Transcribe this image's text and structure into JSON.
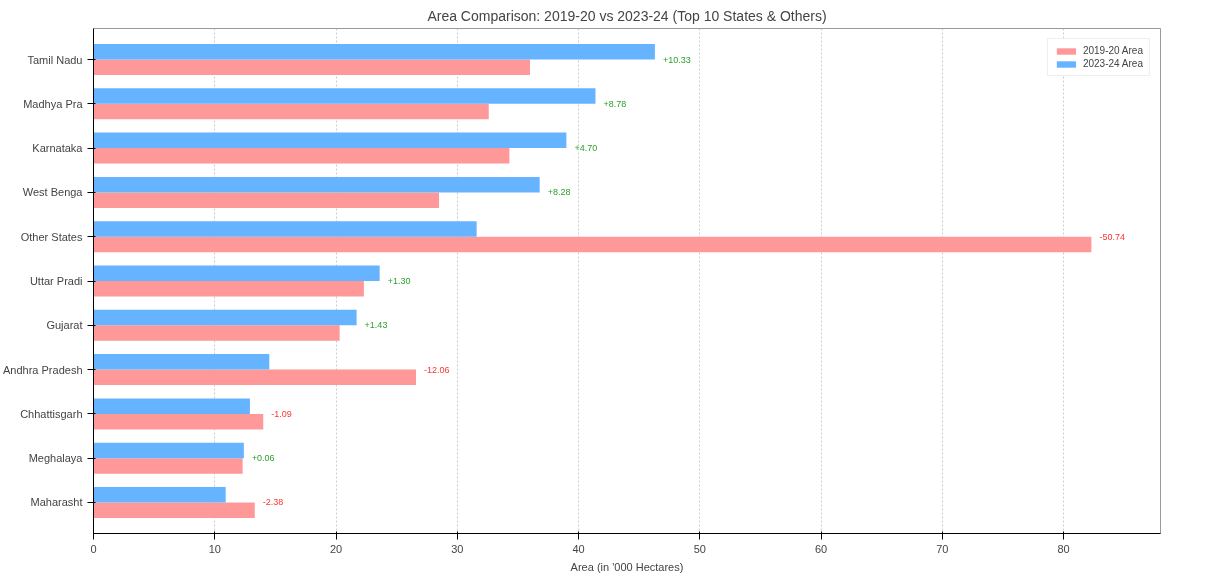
{
  "chart_data": {
    "type": "bar",
    "orientation": "horizontal",
    "title": "Area Comparison: 2019-20 vs 2023-24 (Top 10 States & Others)",
    "xlabel": "Area (in '000 Hectares)",
    "categories": [
      "Tamil Nadu",
      "Madhya Pra",
      "Karnataka",
      "West Benga",
      "Other States",
      "Uttar Pradi",
      "Gujarat",
      "Andhra Pradesh",
      "Chhattisgarh",
      "Meghalaya",
      "Maharasht"
    ],
    "series": [
      {
        "name": "2019-20 Area",
        "color": "#ff9999",
        "values": [
          36.0,
          32.6,
          34.3,
          28.5,
          82.3,
          22.3,
          20.3,
          26.6,
          14.0,
          12.3,
          13.3
        ]
      },
      {
        "name": "2023-24 Area",
        "color": "#66b3ff",
        "values": [
          46.3,
          41.4,
          39.0,
          36.8,
          31.6,
          23.6,
          21.7,
          14.5,
          12.9,
          12.4,
          10.9
        ]
      }
    ],
    "annotations": [
      {
        "text": "+10.33",
        "x": 46.3,
        "y": "Tamil Nadu"
      },
      {
        "text": "+8.78",
        "x": 41.4,
        "y": "Madhya Pra"
      },
      {
        "text": "+4.70",
        "x": 39.0,
        "y": "Karnataka"
      },
      {
        "text": "+8.28",
        "x": 36.8,
        "y": "West Benga"
      },
      {
        "text": "-50.74",
        "x": 82.3,
        "y": "Other States"
      },
      {
        "text": "+1.30",
        "x": 23.6,
        "y": "Uttar Pradi"
      },
      {
        "text": "+1.43",
        "x": 21.7,
        "y": "Gujarat"
      },
      {
        "text": "-12.06",
        "x": 26.6,
        "y": "Andhra Pradesh"
      },
      {
        "text": "-1.09",
        "x": 14.0,
        "y": "Chhattisgarh"
      },
      {
        "text": "+0.06",
        "x": 12.4,
        "y": "Meghalaya"
      },
      {
        "text": "-2.38",
        "x": 13.3,
        "y": "Maharasht"
      }
    ],
    "xlim": [
      0,
      88
    ],
    "xticks": [
      0,
      10,
      20,
      30,
      40,
      50,
      60,
      70,
      80
    ],
    "grid": "x",
    "legend": "top right"
  }
}
